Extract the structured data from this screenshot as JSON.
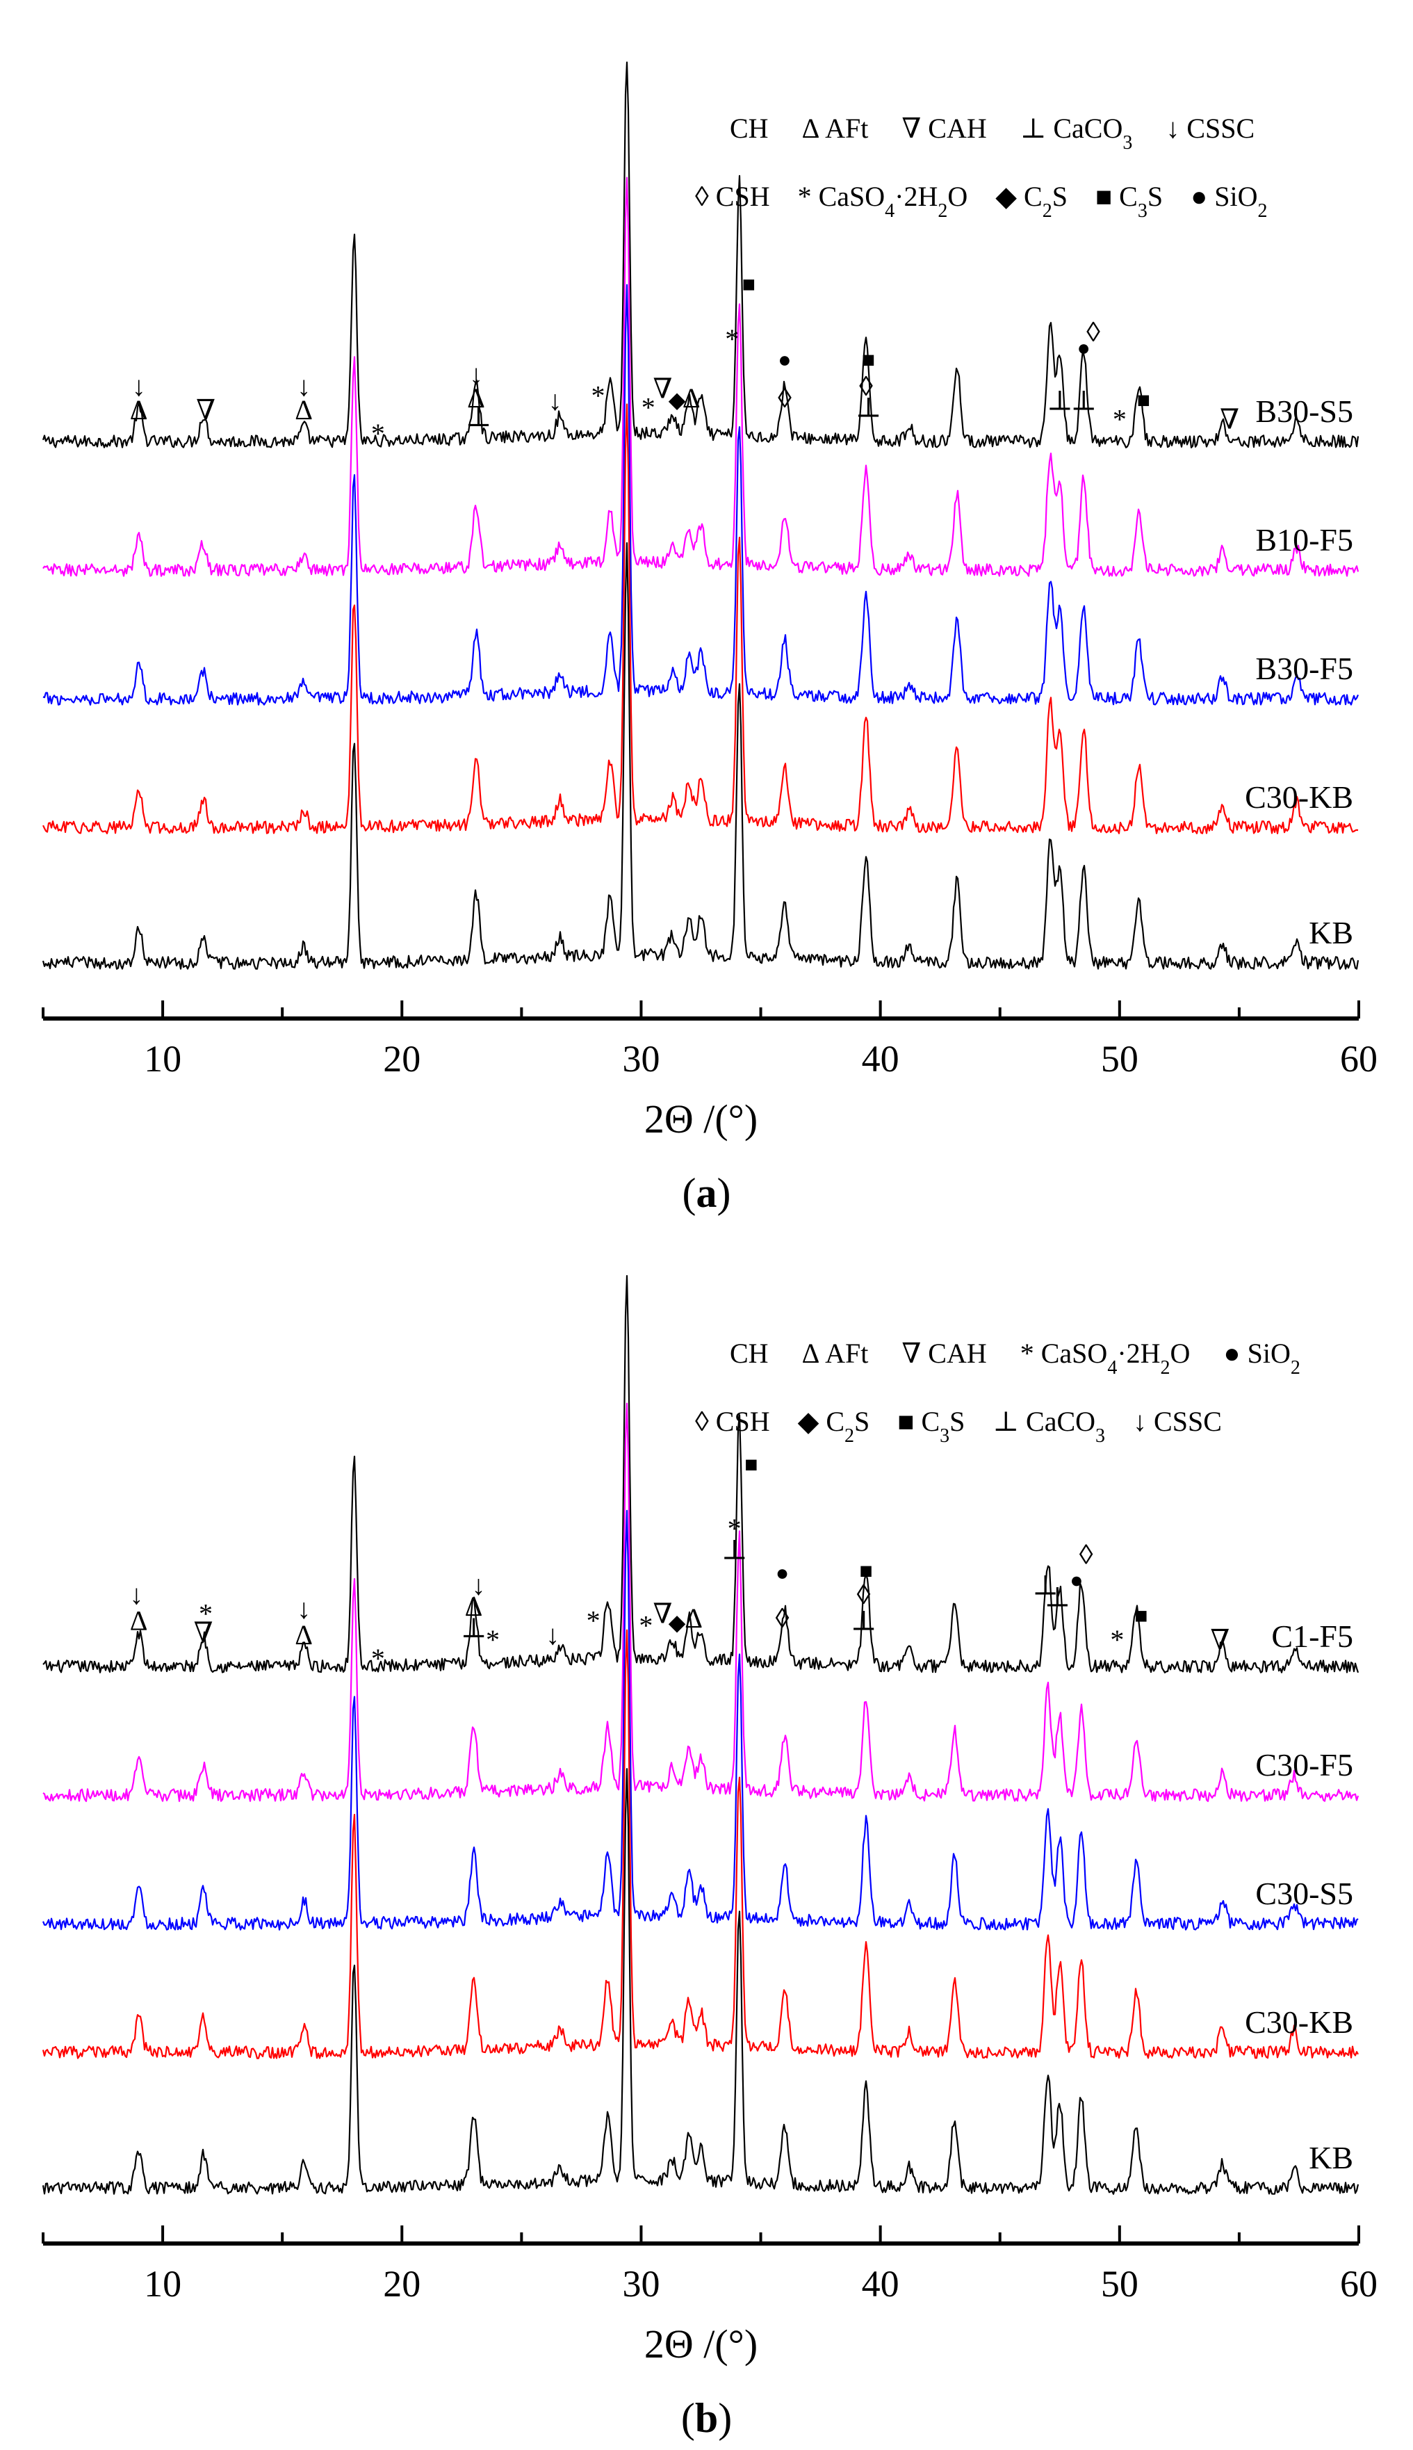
{
  "chart_data": [
    {
      "type": "line",
      "panel_label": "(a)",
      "xlabel": "2Θ /(°)",
      "ylabel": "",
      "xlim": [
        5,
        60
      ],
      "xticks": [
        "10",
        "20",
        "30",
        "40",
        "50",
        "60"
      ],
      "grid": false,
      "legend": {
        "row1": [
          {
            "sym": "",
            "label": "CH"
          },
          {
            "sym": "Δ",
            "label": "AFt"
          },
          {
            "sym": "∇",
            "label": "CAH"
          },
          {
            "sym": "⊥",
            "label": "CaCO",
            "sub": "3"
          },
          {
            "sym": "↓",
            "label": "CSSC"
          }
        ],
        "row2": [
          {
            "sym": "◊",
            "label": "CSH"
          },
          {
            "sym": "*",
            "label": "CaSO",
            "sub": "4",
            "tail": "·2H",
            "sub2": "2",
            "tail2": "O"
          },
          {
            "sym": "◆",
            "label": "C",
            "sub": "2",
            "tail": "S"
          },
          {
            "sym": "■",
            "label": "C",
            "sub": "3",
            "tail": "S"
          },
          {
            "sym": "●",
            "label": "SiO",
            "sub": "2"
          }
        ]
      },
      "series": [
        {
          "name": "B30-S5",
          "color": "#000000"
        },
        {
          "name": "B10-F5",
          "color": "#ff00ff"
        },
        {
          "name": "B30-F5",
          "color": "#0000ff"
        },
        {
          "name": "C30-KB",
          "color": "#ff0000"
        },
        {
          "name": "KB",
          "color": "#000000"
        }
      ],
      "peaks": [
        {
          "x": 9.0,
          "h": 0.09
        },
        {
          "x": 11.7,
          "h": 0.07
        },
        {
          "x": 15.9,
          "h": 0.04
        },
        {
          "x": 18.0,
          "h": 0.55
        },
        {
          "x": 23.1,
          "h": 0.16
        },
        {
          "x": 26.6,
          "h": 0.05
        },
        {
          "x": 28.7,
          "h": 0.14
        },
        {
          "x": 29.4,
          "h": 1.0
        },
        {
          "x": 31.3,
          "h": 0.05
        },
        {
          "x": 32.0,
          "h": 0.09
        },
        {
          "x": 32.5,
          "h": 0.1
        },
        {
          "x": 34.1,
          "h": 0.68
        },
        {
          "x": 36.0,
          "h": 0.14
        },
        {
          "x": 39.4,
          "h": 0.26
        },
        {
          "x": 41.2,
          "h": 0.04
        },
        {
          "x": 43.2,
          "h": 0.2
        },
        {
          "x": 47.1,
          "h": 0.3
        },
        {
          "x": 47.5,
          "h": 0.22
        },
        {
          "x": 48.5,
          "h": 0.24
        },
        {
          "x": 50.8,
          "h": 0.15
        },
        {
          "x": 54.3,
          "h": 0.05
        },
        {
          "x": 57.4,
          "h": 0.06
        }
      ],
      "annotations": [
        {
          "x": 9.0,
          "level": 0,
          "sym": "Δ"
        },
        {
          "x": 9.0,
          "level": 1,
          "sym": "↓"
        },
        {
          "x": 11.8,
          "level": 0,
          "sym": "∇"
        },
        {
          "x": 15.9,
          "level": 0,
          "sym": "Δ"
        },
        {
          "x": 15.9,
          "level": 1,
          "sym": "↓"
        },
        {
          "x": 19.0,
          "level": -1,
          "sym": "*"
        },
        {
          "x": 23.2,
          "level": -0.3,
          "sym": "⊥"
        },
        {
          "x": 23.1,
          "level": 0.5,
          "sym": "Δ"
        },
        {
          "x": 23.1,
          "level": 1.5,
          "sym": "↓"
        },
        {
          "x": 26.4,
          "level": 0.4,
          "sym": "↓"
        },
        {
          "x": 28.2,
          "level": 0.6,
          "sym": "*"
        },
        {
          "x": 29.2,
          "level": 21,
          "sym": "◆"
        },
        {
          "x": 29.6,
          "level": 20.6,
          "sym": "◊"
        },
        {
          "x": 29.3,
          "level": 22.6,
          "sym": "■"
        },
        {
          "x": 29.6,
          "level": 23.6,
          "sym": "⊥"
        },
        {
          "x": 30.3,
          "level": 0.1,
          "sym": "*"
        },
        {
          "x": 30.9,
          "level": 0.9,
          "sym": "∇"
        },
        {
          "x": 31.5,
          "level": 0.5,
          "sym": "◆"
        },
        {
          "x": 32.1,
          "level": 0.5,
          "sym": "Δ"
        },
        {
          "x": 33.8,
          "level": 3.0,
          "sym": "*"
        },
        {
          "x": 34.5,
          "level": 5.4,
          "sym": "■"
        },
        {
          "x": 36.0,
          "level": 0.5,
          "sym": "◊"
        },
        {
          "x": 36.0,
          "level": 2.2,
          "sym": "●"
        },
        {
          "x": 39.5,
          "level": 0.1,
          "sym": "⊥"
        },
        {
          "x": 39.4,
          "level": 1.0,
          "sym": "◊"
        },
        {
          "x": 39.5,
          "level": 2.2,
          "sym": "■"
        },
        {
          "x": 47.5,
          "level": 0.4,
          "sym": "⊥"
        },
        {
          "x": 48.5,
          "level": 0.4,
          "sym": "⊥"
        },
        {
          "x": 48.5,
          "level": 2.7,
          "sym": "●"
        },
        {
          "x": 48.9,
          "level": 3.3,
          "sym": "◊"
        },
        {
          "x": 50.0,
          "level": -0.4,
          "sym": "*"
        },
        {
          "x": 51.0,
          "level": 0.5,
          "sym": "■"
        },
        {
          "x": 54.6,
          "level": -0.4,
          "sym": "∇"
        }
      ]
    },
    {
      "type": "line",
      "panel_label": "(b)",
      "xlabel": "2Θ /(°)",
      "ylabel": "",
      "xlim": [
        5,
        60
      ],
      "xticks": [
        "10",
        "20",
        "30",
        "40",
        "50",
        "60"
      ],
      "grid": false,
      "legend": {
        "row1": [
          {
            "sym": "",
            "label": "CH"
          },
          {
            "sym": "Δ",
            "label": "AFt"
          },
          {
            "sym": "∇",
            "label": "CAH"
          },
          {
            "sym": "*",
            "label": "CaSO",
            "sub": "4",
            "tail": "·2H",
            "sub2": "2",
            "tail2": "O"
          },
          {
            "sym": "●",
            "label": "SiO",
            "sub": "2"
          }
        ],
        "row2": [
          {
            "sym": "◊",
            "label": "CSH"
          },
          {
            "sym": "◆",
            "label": "C",
            "sub": "2",
            "tail": "S"
          },
          {
            "sym": "■",
            "label": "C",
            "sub": "3",
            "tail": "S"
          },
          {
            "sym": "⊥",
            "label": "CaCO",
            "sub": "3"
          },
          {
            "sym": "↓",
            "label": "CSSC"
          }
        ]
      },
      "series": [
        {
          "name": "C1-F5",
          "color": "#000000"
        },
        {
          "name": "C30-F5",
          "color": "#ff00ff"
        },
        {
          "name": "C30-S5",
          "color": "#0000ff"
        },
        {
          "name": "C30-KB",
          "color": "#ff0000"
        },
        {
          "name": "KB",
          "color": "#000000"
        }
      ],
      "peaks": [
        {
          "x": 9.0,
          "h": 0.09
        },
        {
          "x": 11.7,
          "h": 0.08
        },
        {
          "x": 15.9,
          "h": 0.06
        },
        {
          "x": 18.0,
          "h": 0.56
        },
        {
          "x": 23.0,
          "h": 0.17
        },
        {
          "x": 26.6,
          "h": 0.04
        },
        {
          "x": 28.6,
          "h": 0.16
        },
        {
          "x": 29.4,
          "h": 1.0
        },
        {
          "x": 31.3,
          "h": 0.05
        },
        {
          "x": 32.0,
          "h": 0.11
        },
        {
          "x": 32.5,
          "h": 0.08
        },
        {
          "x": 34.1,
          "h": 0.66
        },
        {
          "x": 36.0,
          "h": 0.14
        },
        {
          "x": 39.4,
          "h": 0.25
        },
        {
          "x": 41.2,
          "h": 0.05
        },
        {
          "x": 43.1,
          "h": 0.17
        },
        {
          "x": 47.0,
          "h": 0.28
        },
        {
          "x": 47.5,
          "h": 0.21
        },
        {
          "x": 48.4,
          "h": 0.22
        },
        {
          "x": 50.7,
          "h": 0.15
        },
        {
          "x": 54.3,
          "h": 0.06
        },
        {
          "x": 57.3,
          "h": 0.05
        }
      ],
      "annotations": [
        {
          "x": 9.0,
          "level": 0.6,
          "sym": "Δ"
        },
        {
          "x": 8.9,
          "level": 1.7,
          "sym": "↓"
        },
        {
          "x": 11.7,
          "level": 0.1,
          "sym": "∇"
        },
        {
          "x": 11.8,
          "level": 0.9,
          "sym": "*"
        },
        {
          "x": 15.9,
          "level": 0,
          "sym": "Δ"
        },
        {
          "x": 15.9,
          "level": 1.1,
          "sym": "↓"
        },
        {
          "x": 19.0,
          "level": -1,
          "sym": "*"
        },
        {
          "x": 23.0,
          "level": 0.3,
          "sym": "⊥"
        },
        {
          "x": 23.0,
          "level": 1.2,
          "sym": "Δ"
        },
        {
          "x": 23.2,
          "level": 2.1,
          "sym": "↓"
        },
        {
          "x": 23.8,
          "level": -0.2,
          "sym": "*"
        },
        {
          "x": 26.3,
          "level": 0,
          "sym": "↓"
        },
        {
          "x": 28.0,
          "level": 0.6,
          "sym": "*"
        },
        {
          "x": 29.2,
          "level": 21.6,
          "sym": "⊥"
        },
        {
          "x": 29.5,
          "level": 22.6,
          "sym": "◊"
        },
        {
          "x": 29.3,
          "level": 23.0,
          "sym": "◆"
        },
        {
          "x": 29.3,
          "level": 24.4,
          "sym": "■"
        },
        {
          "x": 30.2,
          "level": 0.4,
          "sym": "*"
        },
        {
          "x": 30.9,
          "level": 0.9,
          "sym": "∇"
        },
        {
          "x": 31.5,
          "level": 0.6,
          "sym": "◆"
        },
        {
          "x": 32.2,
          "level": 0.7,
          "sym": "Δ"
        },
        {
          "x": 33.9,
          "level": 3.6,
          "sym": "⊥"
        },
        {
          "x": 33.9,
          "level": 4.5,
          "sym": "*"
        },
        {
          "x": 34.6,
          "level": 7.3,
          "sym": "■"
        },
        {
          "x": 35.9,
          "level": 0.7,
          "sym": "◊"
        },
        {
          "x": 35.9,
          "level": 2.7,
          "sym": "●"
        },
        {
          "x": 39.3,
          "level": 0.6,
          "sym": "⊥"
        },
        {
          "x": 39.3,
          "level": 1.7,
          "sym": "◊"
        },
        {
          "x": 39.4,
          "level": 2.8,
          "sym": "■"
        },
        {
          "x": 46.9,
          "level": 2.1,
          "sym": "⊥"
        },
        {
          "x": 47.4,
          "level": 1.6,
          "sym": "⊥"
        },
        {
          "x": 48.2,
          "level": 2.4,
          "sym": "●"
        },
        {
          "x": 48.6,
          "level": 3.4,
          "sym": "◊"
        },
        {
          "x": 49.9,
          "level": -0.2,
          "sym": "*"
        },
        {
          "x": 50.9,
          "level": 0.9,
          "sym": "■"
        },
        {
          "x": 54.2,
          "level": -0.2,
          "sym": "∇"
        }
      ]
    }
  ]
}
